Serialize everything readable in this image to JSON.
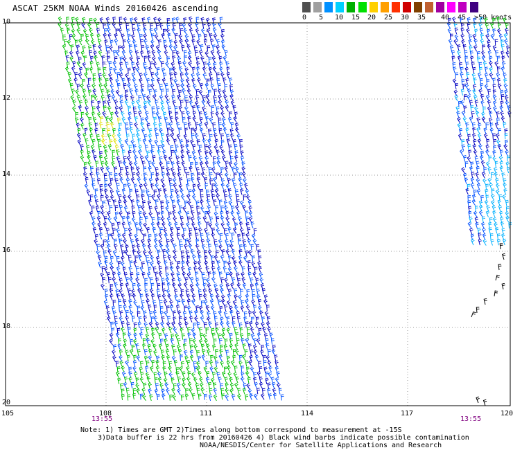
{
  "title": "ASCAT 25KM NOAA Winds 20160426 ascending",
  "colorbar": {
    "colors": [
      "#505050",
      "#a0a0a0",
      "#0090ff",
      "#00d0ff",
      "#00b000",
      "#00e000",
      "#ffd000",
      "#ffa000",
      "#ff3000",
      "#d00000",
      "#804000",
      "#c06030",
      "#a000a0",
      "#ff00ff",
      "#c000c0",
      "#400080"
    ],
    "labels": [
      "0",
      "5",
      "10",
      "15",
      "20",
      "25",
      "30",
      "35",
      "40",
      "45",
      ">50 knots"
    ]
  },
  "map": {
    "lat_labels": [
      "10",
      "12",
      "14",
      "16",
      "18",
      "20"
    ],
    "lon_labels": [
      "105",
      "108",
      "111",
      "114",
      "117",
      "120"
    ],
    "pass_times": [
      "13:55",
      "13:55"
    ]
  },
  "notes": {
    "line1": "Note: 1) Times are GMT 2)Times along bottom correspond to measurement at -15S",
    "line2": "3)Data buffer is 22 hrs from 20160426 4) Black wind barbs indicate possible contamination",
    "line3": "NOAA/NESDIS/Center for Satellite Applications and Research"
  },
  "wind_colors": {
    "dark_blue": "#0000c0",
    "blue": "#0050ff",
    "light_blue": "#00b0ff",
    "green": "#00c000",
    "yellow": "#e0e000",
    "black": "#000000"
  }
}
